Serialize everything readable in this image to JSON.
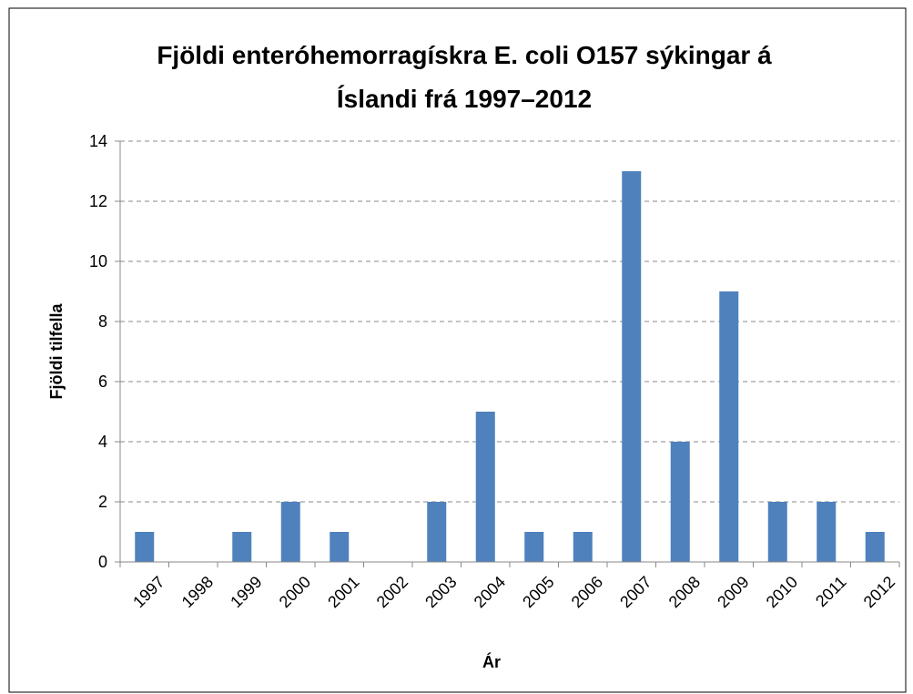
{
  "chart_data": {
    "type": "bar",
    "title": [
      "Fjöldi enteróhemorragískra E. coli O157 sýkingar á",
      "Íslandi frá 1997–2012"
    ],
    "x_label": "Ár",
    "y_label": "Fjöldi tilfella",
    "categories": [
      "1997",
      "1998",
      "1999",
      "2000",
      "2001",
      "2002",
      "2003",
      "2004",
      "2005",
      "2006",
      "2007",
      "2008",
      "2009",
      "2010",
      "2011",
      "2012"
    ],
    "values": [
      1,
      0,
      1,
      2,
      1,
      0,
      2,
      5,
      1,
      1,
      13,
      4,
      9,
      2,
      2,
      1
    ],
    "color": "#4f81bd",
    "ylim": [
      0,
      14
    ],
    "yticks": [
      0,
      2,
      4,
      6,
      8,
      10,
      12,
      14
    ],
    "grid": true
  }
}
